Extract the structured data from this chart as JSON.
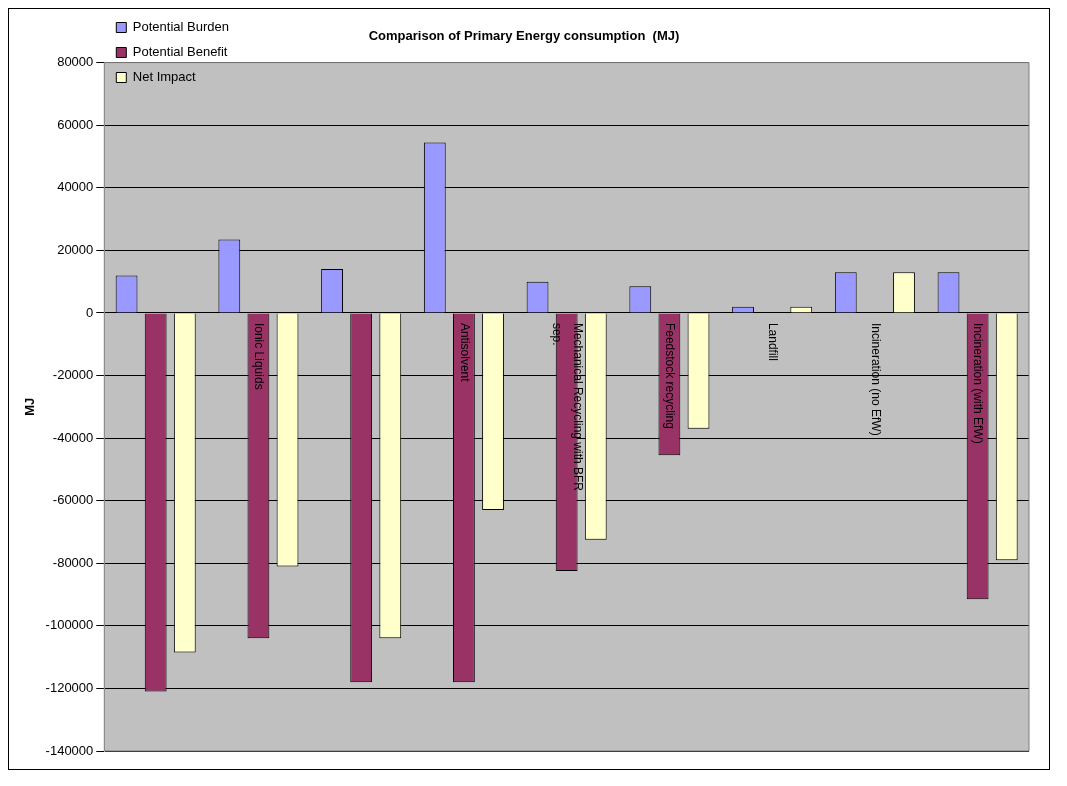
{
  "chart_data": {
    "type": "bar",
    "title": "Comparison of Primary Energy consumption  (MJ)",
    "ylabel": "MJ",
    "categories": [
      null,
      "Ionic Liquids",
      null,
      "Antisolvent",
      "Mechanical Recycling with BFR sep.",
      "Feedstock recycling",
      "Landfill",
      "Incineration (no EfW)",
      "Incineration (with EfW)"
    ],
    "series": [
      {
        "name": "Potential Burden",
        "color": "#9999ff",
        "values": [
          12000,
          23500,
          14000,
          54500,
          10000,
          8500,
          2000,
          13000,
          13000
        ]
      },
      {
        "name": "Potential Benefit",
        "color": "#993366",
        "values": [
          -121000,
          -104000,
          -118000,
          -118000,
          -82500,
          -45500,
          null,
          null,
          -91500
        ]
      },
      {
        "name": "Net Impact",
        "color": "#ffffcc",
        "values": [
          -108500,
          -81000,
          -104000,
          -63000,
          -72500,
          -37000,
          2000,
          13000,
          -79000
        ]
      }
    ],
    "ylim": [
      -140000,
      80000
    ],
    "yticks": [
      -140000,
      -120000,
      -100000,
      -80000,
      -60000,
      -40000,
      -20000,
      0,
      20000,
      40000,
      60000,
      80000
    ],
    "grid": "y",
    "legend": "top left"
  }
}
